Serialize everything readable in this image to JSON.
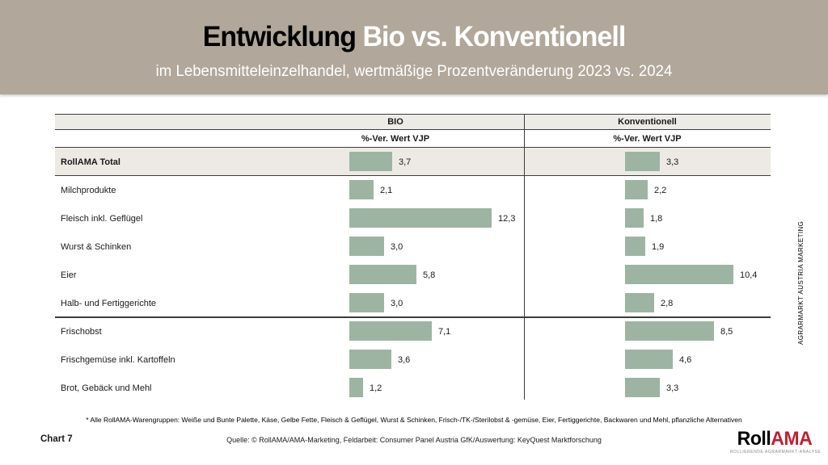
{
  "header": {
    "title_black": "Entwicklung ",
    "title_white": "Bio vs. Konventionell",
    "subtitle": "im Lebensmitteleinzelhandel, wertmäßige Prozentveränderung 2023 vs. 2024",
    "band_color": "#b1a79a"
  },
  "chart_data": {
    "type": "bar",
    "orientation": "horizontal",
    "columns": [
      {
        "name": "BIO",
        "metric": "%-Ver. Wert VJP"
      },
      {
        "name": "Konventionell",
        "metric": "%-Ver. Wert VJP"
      }
    ],
    "categories": [
      "RollAMA Total",
      "Milchprodukte",
      "Fleisch inkl. Geflügel",
      "Wurst & Schinken",
      "Eier",
      "Halb- und Fertiggerichte",
      "Frischobst",
      "Frischgemüse inkl. Kartoffeln",
      "Brot, Gebäck und Mehl"
    ],
    "series": [
      {
        "name": "BIO",
        "values": [
          3.7,
          2.1,
          12.3,
          3.0,
          5.8,
          3.0,
          7.1,
          3.6,
          1.2
        ]
      },
      {
        "name": "Konventionell",
        "values": [
          3.3,
          2.2,
          1.8,
          1.9,
          10.4,
          2.8,
          8.5,
          4.6,
          3.3
        ]
      }
    ],
    "value_labels": [
      [
        "3,7",
        "2,1",
        "12,3",
        "3,0",
        "5,8",
        "3,0",
        "7,1",
        "3,6",
        "1,2"
      ],
      [
        "3,3",
        "2,2",
        "1,8",
        "1,9",
        "10,4",
        "2,8",
        "8,5",
        "4,6",
        "3,3"
      ]
    ],
    "bar_color": "#9eb4a2",
    "highlight_row": "RollAMA Total",
    "group_separator_after": "Halb- und Fertiggerichte",
    "grid": false,
    "legend_position": "none"
  },
  "side_label": "AGRARMARKT AUSTRIA MARKETING",
  "footer": {
    "footnote": "* Alle RollAMA-Warengruppen: Weiße und Bunte Palette, Käse, Gelbe Fette, Fleisch & Geflügel, Wurst & Schinken, Frisch-/TK-/Sterilobst & -gemüse, Eier, Fertiggerichte, Backwaren und Mehl, pflanzliche Alternativen",
    "chart_number": "Chart 7",
    "source": "Quelle: © RollAMA/AMA-Marketing, Feldarbeit: Consumer Panel Austria GfK/Auswertung: KeyQuest Marktforschung",
    "logo": {
      "part1": "Roll",
      "part2": "AMA",
      "tagline": "ROLLIERENDE AGRARMARKT-ANALYSE",
      "accent_color": "#c1202f"
    }
  }
}
